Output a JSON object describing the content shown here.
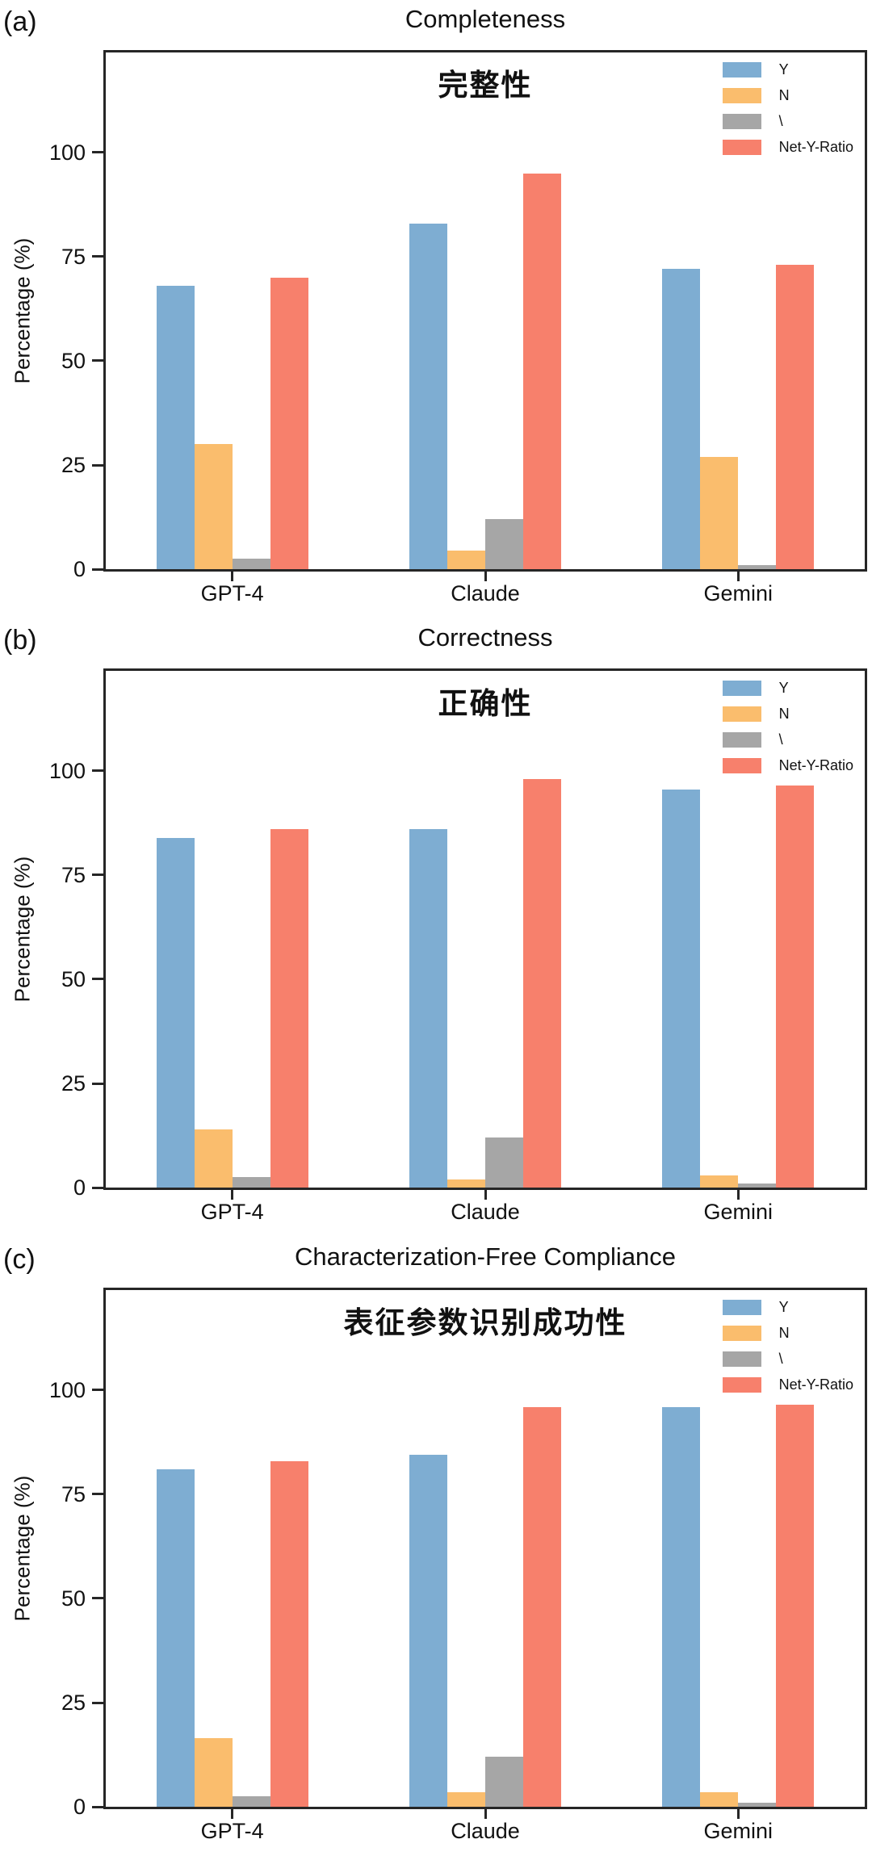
{
  "chart_data": [
    {
      "type": "bar",
      "panel_label": "(a)",
      "title": "Completeness",
      "subtitle": "完整性",
      "ylabel": "Percentage (%)",
      "categories": [
        "GPT-4",
        "Claude",
        "Gemini"
      ],
      "series": [
        {
          "name": "Y",
          "color": "#7EADD2",
          "values": [
            68,
            83,
            72
          ]
        },
        {
          "name": "N",
          "color": "#FABD6D",
          "values": [
            30,
            4.5,
            27
          ]
        },
        {
          "name": "\\",
          "color": "#A6A6A6",
          "values": [
            2.5,
            12,
            1
          ]
        },
        {
          "name": "Net-Y-Ratio",
          "color": "#F7806C",
          "values": [
            70,
            95,
            73
          ]
        }
      ],
      "yticks": [
        0,
        25,
        50,
        75,
        100
      ],
      "ylim": [
        0,
        124
      ],
      "grid": false,
      "legend_position": "top-right"
    },
    {
      "type": "bar",
      "panel_label": "(b)",
      "title": "Correctness",
      "subtitle": "正确性",
      "ylabel": "Percentage (%)",
      "categories": [
        "GPT-4",
        "Claude",
        "Gemini"
      ],
      "series": [
        {
          "name": "Y",
          "color": "#7EADD2",
          "values": [
            84,
            86,
            95.5
          ]
        },
        {
          "name": "N",
          "color": "#FABD6D",
          "values": [
            14,
            2,
            3
          ]
        },
        {
          "name": "\\",
          "color": "#A6A6A6",
          "values": [
            2.5,
            12,
            1
          ]
        },
        {
          "name": "Net-Y-Ratio",
          "color": "#F7806C",
          "values": [
            86,
            98,
            96.5
          ]
        }
      ],
      "yticks": [
        0,
        25,
        50,
        75,
        100
      ],
      "ylim": [
        0,
        124
      ],
      "grid": false,
      "legend_position": "top-right"
    },
    {
      "type": "bar",
      "panel_label": "(c)",
      "title": "Characterization-Free Compliance",
      "subtitle": "表征参数识别成功性",
      "ylabel": "Percentage (%)",
      "categories": [
        "GPT-4",
        "Claude",
        "Gemini"
      ],
      "series": [
        {
          "name": "Y",
          "color": "#7EADD2",
          "values": [
            81,
            84.5,
            96
          ]
        },
        {
          "name": "N",
          "color": "#FABD6D",
          "values": [
            16.5,
            3.5,
            3.5
          ]
        },
        {
          "name": "\\",
          "color": "#A6A6A6",
          "values": [
            2.5,
            12,
            1
          ]
        },
        {
          "name": "Net-Y-Ratio",
          "color": "#F7806C",
          "values": [
            83,
            96,
            96.5
          ]
        }
      ],
      "yticks": [
        0,
        25,
        50,
        75,
        100
      ],
      "ylim": [
        0,
        124
      ],
      "grid": false,
      "legend_position": "top-right"
    }
  ]
}
